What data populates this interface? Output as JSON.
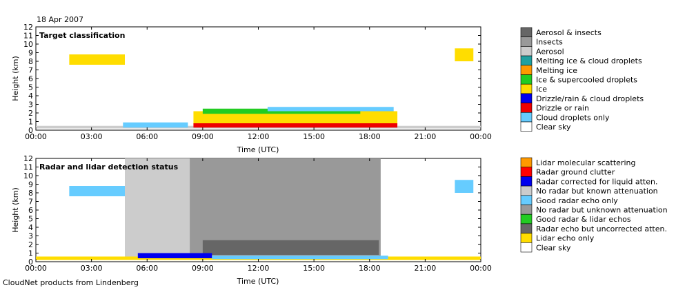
{
  "date_label": "18 Apr 2007",
  "footer": "CloudNet products from Lindenberg",
  "colors": {
    "aerosol_insects": "#666666",
    "insects": "#999999",
    "aerosol": "#cccccc",
    "melting_ice_droplets": "#20a0a0",
    "melting_ice": "#ff9900",
    "ice_supercooled": "#22cc22",
    "ice": "#ffdd00",
    "drizzle_droplets": "#0000ee",
    "drizzle_rain": "#ee0000",
    "cloud_droplets": "#66ccff",
    "clear": "#ffffff",
    "lidar_molecular": "#ff9900",
    "ground_clutter": "#ff0000",
    "radar_corrected": "#0000ee",
    "no_radar_known": "#cccccc",
    "good_radar_only": "#66ccff",
    "no_radar_unknown": "#999999",
    "good_radar_lidar": "#22cc22",
    "radar_uncorrected": "#666666",
    "lidar_only": "#ffdd00"
  },
  "chart_data": [
    {
      "type": "heatmap",
      "title": "Target classification",
      "xlabel": "Time (UTC)",
      "ylabel": "Height (km)",
      "xlim": [
        0,
        24
      ],
      "ylim": [
        0,
        12
      ],
      "x_ticks": [
        "00:00",
        "03:00",
        "06:00",
        "09:00",
        "12:00",
        "15:00",
        "18:00",
        "21:00",
        "00:00"
      ],
      "y_ticks": [
        "0",
        "1",
        "2",
        "3",
        "4",
        "5",
        "6",
        "7",
        "8",
        "9",
        "10",
        "11",
        "12"
      ],
      "legend": [
        {
          "label": "Aerosol & insects",
          "color": "#666666"
        },
        {
          "label": "Insects",
          "color": "#999999"
        },
        {
          "label": "Aerosol",
          "color": "#cccccc"
        },
        {
          "label": "Melting ice & cloud droplets",
          "color": "#20a0a0"
        },
        {
          "label": "Melting ice",
          "color": "#ff9900"
        },
        {
          "label": "Ice & supercooled droplets",
          "color": "#22cc22"
        },
        {
          "label": "Ice",
          "color": "#ffdd00"
        },
        {
          "label": "Drizzle/rain & cloud droplets",
          "color": "#0000ee"
        },
        {
          "label": "Drizzle or rain",
          "color": "#ee0000"
        },
        {
          "label": "Cloud droplets only",
          "color": "#66ccff"
        },
        {
          "label": "Clear sky",
          "color": "#ffffff"
        }
      ],
      "regions": [
        {
          "cls": "Aerosol",
          "t": [
            0,
            24
          ],
          "h": [
            0.2,
            0.5
          ]
        },
        {
          "cls": "Ice",
          "t": [
            1.8,
            4.8
          ],
          "h": [
            7.6,
            8.8
          ]
        },
        {
          "cls": "Ice",
          "t": [
            22.6,
            23.6
          ],
          "h": [
            8.0,
            9.5
          ]
        },
        {
          "cls": "Cloud droplets only",
          "t": [
            4.7,
            8.2
          ],
          "h": [
            0.3,
            0.9
          ]
        },
        {
          "cls": "Ice",
          "t": [
            8.5,
            19.5
          ],
          "h": [
            0.6,
            2.2
          ]
        },
        {
          "cls": "Ice & supercooled droplets",
          "t": [
            9.0,
            17.5
          ],
          "h": [
            1.9,
            2.5
          ]
        },
        {
          "cls": "Drizzle or rain",
          "t": [
            8.5,
            19.5
          ],
          "h": [
            0.3,
            0.8
          ]
        },
        {
          "cls": "Cloud droplets only",
          "t": [
            12.5,
            19.3
          ],
          "h": [
            2.2,
            2.7
          ]
        }
      ]
    },
    {
      "type": "heatmap",
      "title": "Radar and lidar detection status",
      "xlabel": "Time (UTC)",
      "ylabel": "Height (km)",
      "xlim": [
        0,
        24
      ],
      "ylim": [
        0,
        12
      ],
      "x_ticks": [
        "00:00",
        "03:00",
        "06:00",
        "09:00",
        "12:00",
        "15:00",
        "18:00",
        "21:00",
        "00:00"
      ],
      "y_ticks": [
        "0",
        "1",
        "2",
        "3",
        "4",
        "5",
        "6",
        "7",
        "8",
        "9",
        "10",
        "11",
        "12"
      ],
      "legend": [
        {
          "label": "Lidar molecular scattering",
          "color": "#ff9900"
        },
        {
          "label": "Radar ground clutter",
          "color": "#ff0000"
        },
        {
          "label": "Radar corrected for liquid atten.",
          "color": "#0000ee"
        },
        {
          "label": "No radar but known attenuation",
          "color": "#cccccc"
        },
        {
          "label": "Good radar echo only",
          "color": "#66ccff"
        },
        {
          "label": "No radar but unknown attenuation",
          "color": "#999999"
        },
        {
          "label": "Good radar & lidar echos",
          "color": "#22cc22"
        },
        {
          "label": "Radar echo but uncorrected atten.",
          "color": "#666666"
        },
        {
          "label": "Lidar echo only",
          "color": "#ffdd00"
        },
        {
          "label": "Clear sky",
          "color": "#ffffff"
        }
      ],
      "regions": [
        {
          "cls": "Lidar echo only",
          "t": [
            0,
            24
          ],
          "h": [
            0.2,
            0.6
          ]
        },
        {
          "cls": "Good radar echo only",
          "t": [
            1.8,
            4.8
          ],
          "h": [
            7.6,
            8.8
          ]
        },
        {
          "cls": "Good radar echo only",
          "t": [
            22.6,
            23.6
          ],
          "h": [
            8.0,
            9.5
          ]
        },
        {
          "cls": "No radar but known attenuation",
          "t": [
            4.8,
            8.3
          ],
          "h": [
            0.6,
            12
          ]
        },
        {
          "cls": "No radar but unknown attenuation",
          "t": [
            8.3,
            18.6
          ],
          "h": [
            0.6,
            12
          ]
        },
        {
          "cls": "Radar echo but uncorrected atten.",
          "t": [
            9.0,
            18.5
          ],
          "h": [
            0.8,
            2.5
          ]
        },
        {
          "cls": "Radar corrected for liquid atten.",
          "t": [
            5.5,
            9.5
          ],
          "h": [
            0.4,
            1.0
          ]
        },
        {
          "cls": "Good radar echo only",
          "t": [
            9.5,
            19.0
          ],
          "h": [
            0.3,
            0.7
          ]
        }
      ]
    }
  ]
}
